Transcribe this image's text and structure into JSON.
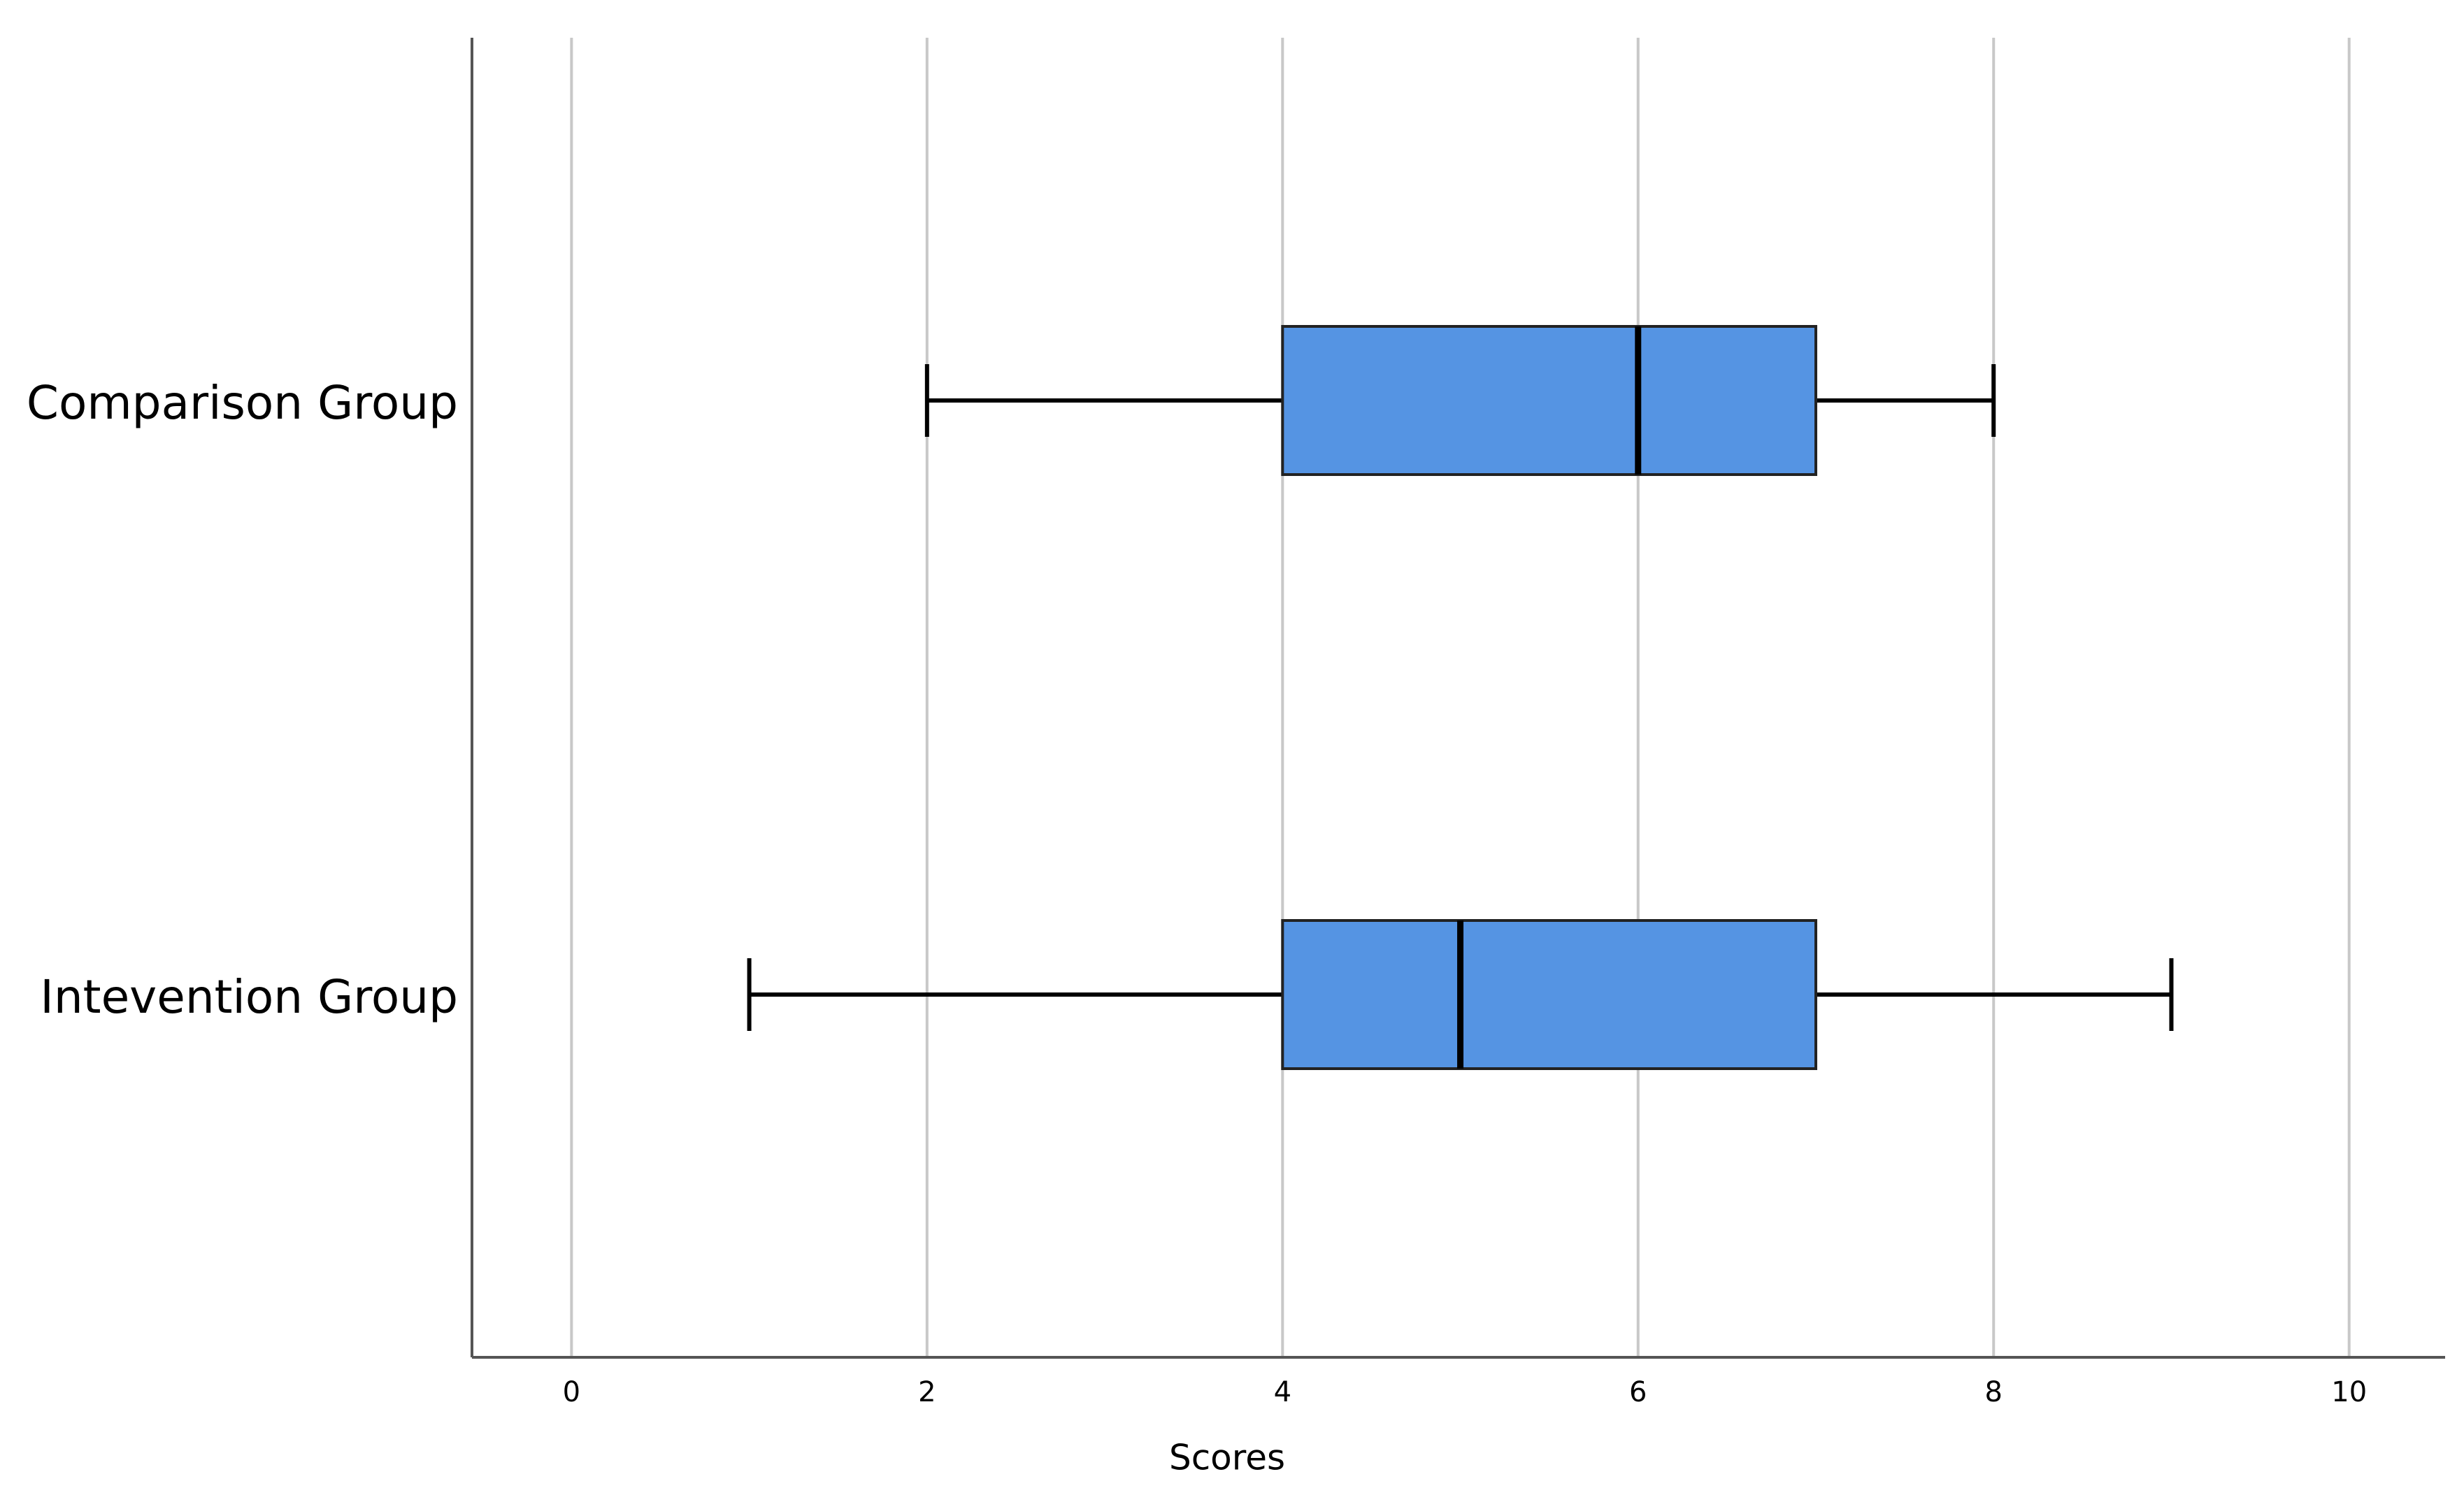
{
  "chart_data": {
    "type": "boxplot",
    "orientation": "horizontal",
    "categories": [
      "Comparison Group",
      "Intevention Group"
    ],
    "boxes": [
      {
        "min": 2,
        "q1": 4,
        "median": 6,
        "q3": 7,
        "max": 8
      },
      {
        "min": 1,
        "q1": 4,
        "median": 5,
        "q3": 7,
        "max": 9
      }
    ],
    "color": "#5594e3",
    "x_label": "Scores",
    "xlim": [
      -0.56,
      10.54
    ],
    "xticks": [
      0,
      2,
      4,
      6,
      8,
      10
    ],
    "grid": true
  }
}
